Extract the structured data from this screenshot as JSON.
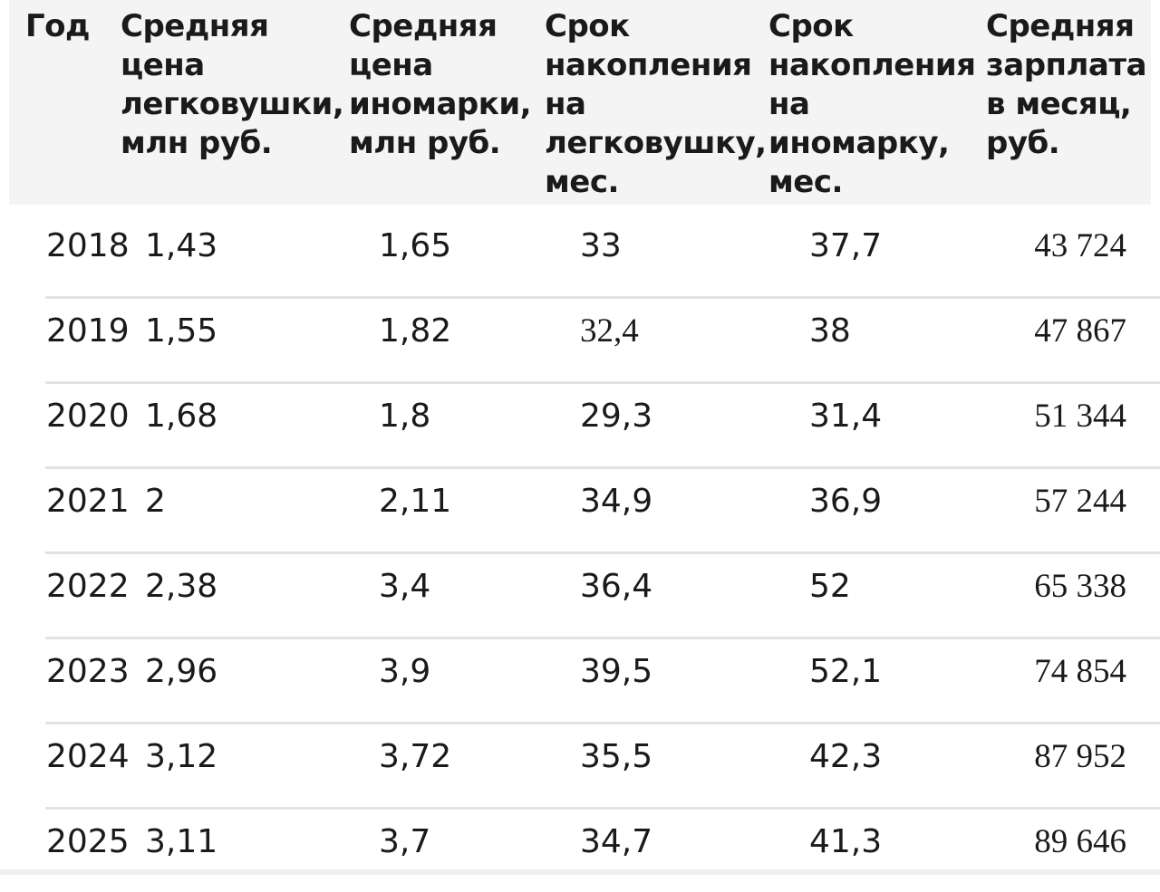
{
  "chart_data": {
    "type": "table",
    "columns": [
      "Год",
      "Средняя\nцена\nлегковушки,\nмлн руб.",
      "Средняя\nцена\nиномарки,\nмлн руб.",
      "Срок\nнакопления\nна\nлегковушку,\nмес.",
      "Срок\nнакопления\nна\nиномарку,\nмес.",
      "Средняя\nзарплата\nв месяц,\nруб."
    ],
    "rows": [
      [
        "2018",
        "1,43",
        "1,65",
        "33",
        "37,7",
        "43 724"
      ],
      [
        "2019",
        "1,55",
        "1,82",
        "32,4",
        "38",
        "47 867"
      ],
      [
        "2020",
        "1,68",
        "1,8",
        "29,3",
        "31,4",
        "51 344"
      ],
      [
        "2021",
        "2",
        "2,11",
        "34,9",
        "36,9",
        "57 244"
      ],
      [
        "2022",
        "2,38",
        "3,4",
        "36,4",
        "52",
        "65 338"
      ],
      [
        "2023",
        "2,96",
        "3,9",
        "39,5",
        "52,1",
        "74 854"
      ],
      [
        "2024",
        "3,12",
        "3,72",
        "35,5",
        "42,3",
        "87 952"
      ],
      [
        "2025",
        "3,11",
        "3,7",
        "34,7",
        "41,3",
        "89 646"
      ]
    ]
  }
}
